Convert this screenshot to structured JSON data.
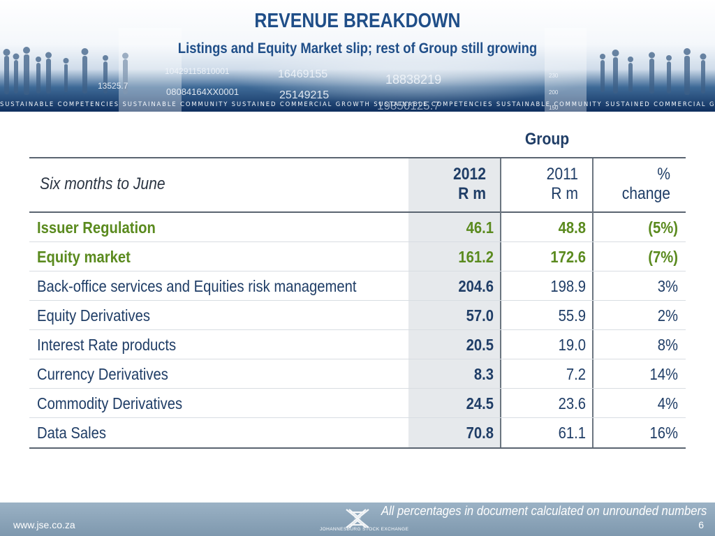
{
  "header": {
    "title": "REVENUE BREAKDOWN",
    "subtitle": "Listings and Equity Market slip; rest of Group still growing",
    "strip_text": "SUSTAINABLE COMPETENCIES SUSTAINABLE COMMUNITY SUSTAINED COMMERCIAL GROWTH SUSTAINABLE COMPETENCIES SUSTAINABLE COMMUNITY SUSTAINED COMMERCIAL GROWTH",
    "ticker_numbers": [
      "10429115810001",
      "16469155",
      "18838219",
      "08084164XX0001",
      "25149215",
      "19850125.7",
      "13525.7",
      "230",
      "200",
      "150"
    ],
    "colors": {
      "title": "#1f4e88",
      "banner_dark": "#0f2f5e"
    }
  },
  "table": {
    "group_label": "Group",
    "period_label": "Six months to June",
    "col_2012": {
      "year": "2012",
      "unit": "R m"
    },
    "col_2011": {
      "year": "2011",
      "unit": "R m"
    },
    "col_pct": {
      "symbol": "%",
      "label": "change"
    },
    "rows": [
      {
        "label": "Issuer Regulation",
        "v2012": "46.1",
        "v2011": "48.8",
        "pct": "(5%)",
        "highlight": true
      },
      {
        "label": "Equity market",
        "v2012": "161.2",
        "v2011": "172.6",
        "pct": "(7%)",
        "highlight": true
      },
      {
        "label": "Back-office services and Equities risk management",
        "v2012": "204.6",
        "v2011": "198.9",
        "pct": "3%",
        "highlight": false
      },
      {
        "label": "Equity Derivatives",
        "v2012": "57.0",
        "v2011": "55.9",
        "pct": "2%",
        "highlight": false
      },
      {
        "label": "Interest Rate products",
        "v2012": "20.5",
        "v2011": "19.0",
        "pct": "8%",
        "highlight": false
      },
      {
        "label": "Currency Derivatives",
        "v2012": "8.3",
        "v2011": "7.2",
        "pct": "14%",
        "highlight": false
      },
      {
        "label": "Commodity Derivatives",
        "v2012": "24.5",
        "v2011": "23.6",
        "pct": "4%",
        "highlight": false
      },
      {
        "label": "Data Sales",
        "v2012": "70.8",
        "v2011": "61.1",
        "pct": "16%",
        "highlight": false
      }
    ],
    "colors": {
      "highlight": "#5a8a1e",
      "text": "#1f3d66",
      "shade": "#e6e9ec"
    }
  },
  "footer": {
    "note": "All percentages in document calculated on unrounded numbers",
    "website": "www.jse.co.za",
    "page_number": "6",
    "logo_text": "JOHANNESBURG STOCK EXCHANGE",
    "logo_mark": "JSE"
  }
}
